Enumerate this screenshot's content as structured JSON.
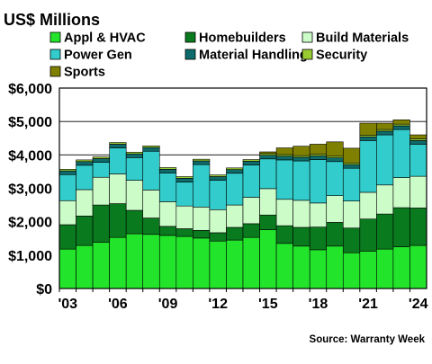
{
  "chart_data": {
    "type": "bar",
    "stacked": true,
    "title": "US$ Millions",
    "source": "Source: Warranty Week",
    "x": [
      "2003",
      "2004",
      "2005",
      "2006",
      "2007",
      "2008",
      "2009",
      "2010",
      "2011",
      "2012",
      "2013",
      "2014",
      "2015",
      "2016",
      "2017",
      "2018",
      "2019",
      "2020",
      "2021",
      "2022",
      "2023",
      "2024"
    ],
    "x_tick_labels": [
      "'03",
      "",
      "",
      "'06",
      "",
      "",
      "'09",
      "",
      "",
      "'12",
      "",
      "",
      "'15",
      "",
      "",
      "'18",
      "",
      "",
      "'21",
      "",
      "",
      "'24"
    ],
    "y_ticks": [
      "$0",
      "$1,000",
      "$2,000",
      "$3,000",
      "$4,000",
      "$5,000",
      "$6,000"
    ],
    "ylim": [
      0,
      6000
    ],
    "grid": true,
    "legend_position": "top",
    "series": [
      {
        "name": "Appl & HVAC",
        "color": "#22e52b",
        "values": [
          1180,
          1290,
          1380,
          1530,
          1640,
          1620,
          1590,
          1560,
          1510,
          1420,
          1450,
          1530,
          1760,
          1350,
          1270,
          1160,
          1270,
          1070,
          1120,
          1180,
          1250,
          1290
        ]
      },
      {
        "name": "Homebuilders",
        "color": "#0a7a1e",
        "values": [
          730,
          880,
          1120,
          1010,
          700,
          490,
          270,
          230,
          230,
          250,
          380,
          410,
          440,
          530,
          560,
          680,
          710,
          740,
          960,
          1050,
          1170,
          1120
        ]
      },
      {
        "name": "Build Materials",
        "color": "#ccfcc8",
        "values": [
          720,
          790,
          830,
          890,
          900,
          840,
          740,
          680,
          700,
          690,
          670,
          790,
          790,
          790,
          810,
          720,
          800,
          810,
          800,
          870,
          900,
          950
        ]
      },
      {
        "name": "Power Gen",
        "color": "#33cccc",
        "values": [
          780,
          730,
          450,
          780,
          680,
          1160,
          860,
          720,
          1270,
          880,
          950,
          970,
          890,
          1180,
          1180,
          1300,
          1020,
          980,
          1550,
          1500,
          1440,
          960
        ]
      },
      {
        "name": "Material Handling",
        "color": "#0e6b6b",
        "values": [
          110,
          110,
          110,
          110,
          110,
          110,
          110,
          110,
          110,
          110,
          110,
          110,
          110,
          110,
          110,
          110,
          110,
          110,
          110,
          110,
          110,
          110
        ]
      },
      {
        "name": "Security",
        "color": "#99cc33",
        "values": [
          50,
          50,
          50,
          50,
          50,
          50,
          50,
          50,
          50,
          50,
          50,
          50,
          50,
          50,
          50,
          50,
          50,
          50,
          50,
          50,
          50,
          50
        ]
      },
      {
        "name": "Sports",
        "color": "#808000",
        "values": [
          0,
          0,
          0,
          0,
          0,
          0,
          0,
          0,
          0,
          0,
          0,
          0,
          50,
          200,
          280,
          300,
          430,
          440,
          360,
          190,
          130,
          120
        ]
      }
    ]
  }
}
